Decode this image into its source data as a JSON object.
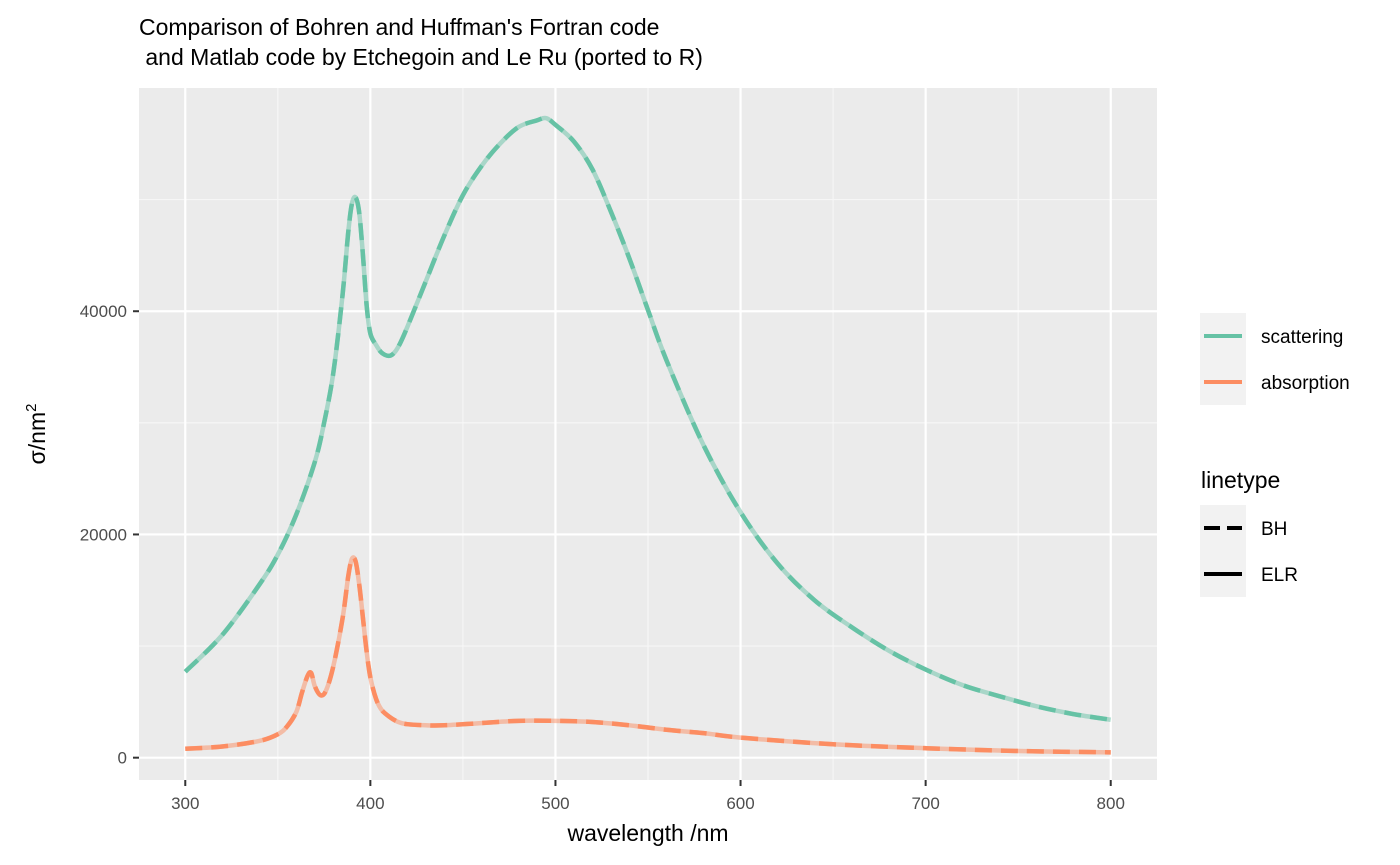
{
  "chart_data": {
    "type": "line",
    "title_line1": "Comparison of Bohren and Huffman's Fortran code",
    "title_line2": " and Matlab code by Etchegoin and Le Ru (ported to R)",
    "xlabel": "wavelength /nm",
    "ylabel": "σ/nm",
    "ylabel_superscript": "2",
    "xlim": [
      275,
      825
    ],
    "ylim": [
      -2000,
      60000
    ],
    "x_ticks": [
      300,
      400,
      500,
      600,
      700,
      800
    ],
    "y_ticks": [
      0,
      20000,
      40000
    ],
    "x_tick_labels": [
      "300",
      "400",
      "500",
      "600",
      "700",
      "800"
    ],
    "y_tick_labels": [
      "0",
      "20000",
      "40000"
    ],
    "grid": true,
    "legend_position": "right",
    "legend_colour_entries": [
      "scattering",
      "absorption"
    ],
    "legend_linetype_title": "linetype",
    "legend_linetype_entries": [
      "BH",
      "ELR"
    ],
    "colors": {
      "scattering": "#66C2A5",
      "absorption": "#FC8D62",
      "panel": "#EBEBEB"
    },
    "series": [
      {
        "name": "scattering",
        "x": [
          300,
          320,
          340,
          350,
          360,
          370,
          375,
          380,
          385,
          388,
          390,
          392,
          394,
          396,
          398,
          400,
          403,
          406,
          410,
          413,
          416,
          420,
          430,
          440,
          450,
          460,
          470,
          480,
          490,
          495,
          500,
          510,
          520,
          530,
          540,
          550,
          560,
          580,
          600,
          620,
          640,
          660,
          680,
          700,
          720,
          740,
          760,
          780,
          800
        ],
        "y": [
          7700,
          11000,
          15500,
          18200,
          21800,
          26500,
          30000,
          34500,
          41500,
          47000,
          49600,
          50200,
          48800,
          45000,
          40500,
          38000,
          37000,
          36300,
          36000,
          36300,
          37100,
          38600,
          42700,
          46800,
          50400,
          53000,
          55000,
          56500,
          57100,
          57300,
          56700,
          55200,
          52700,
          48900,
          44700,
          40100,
          35600,
          28000,
          22000,
          17400,
          14100,
          11700,
          9600,
          7900,
          6500,
          5500,
          4600,
          3900,
          3400
        ]
      },
      {
        "name": "absorption",
        "x": [
          300,
          320,
          340,
          350,
          355,
          360,
          363,
          366,
          368,
          370,
          373,
          376,
          380,
          385,
          388,
          390,
          392,
          394,
          396,
          398,
          400,
          403,
          406,
          410,
          415,
          420,
          430,
          440,
          460,
          480,
          500,
          520,
          540,
          560,
          580,
          600,
          650,
          700,
          750,
          800
        ],
        "y": [
          800,
          1000,
          1500,
          2100,
          2800,
          4100,
          5800,
          7300,
          7600,
          6400,
          5600,
          6000,
          8200,
          12500,
          16200,
          17800,
          17600,
          15500,
          12500,
          9500,
          7200,
          5300,
          4300,
          3700,
          3200,
          3000,
          2900,
          2900,
          3100,
          3300,
          3300,
          3200,
          2900,
          2500,
          2200,
          1800,
          1200,
          850,
          600,
          480
        ]
      }
    ]
  }
}
